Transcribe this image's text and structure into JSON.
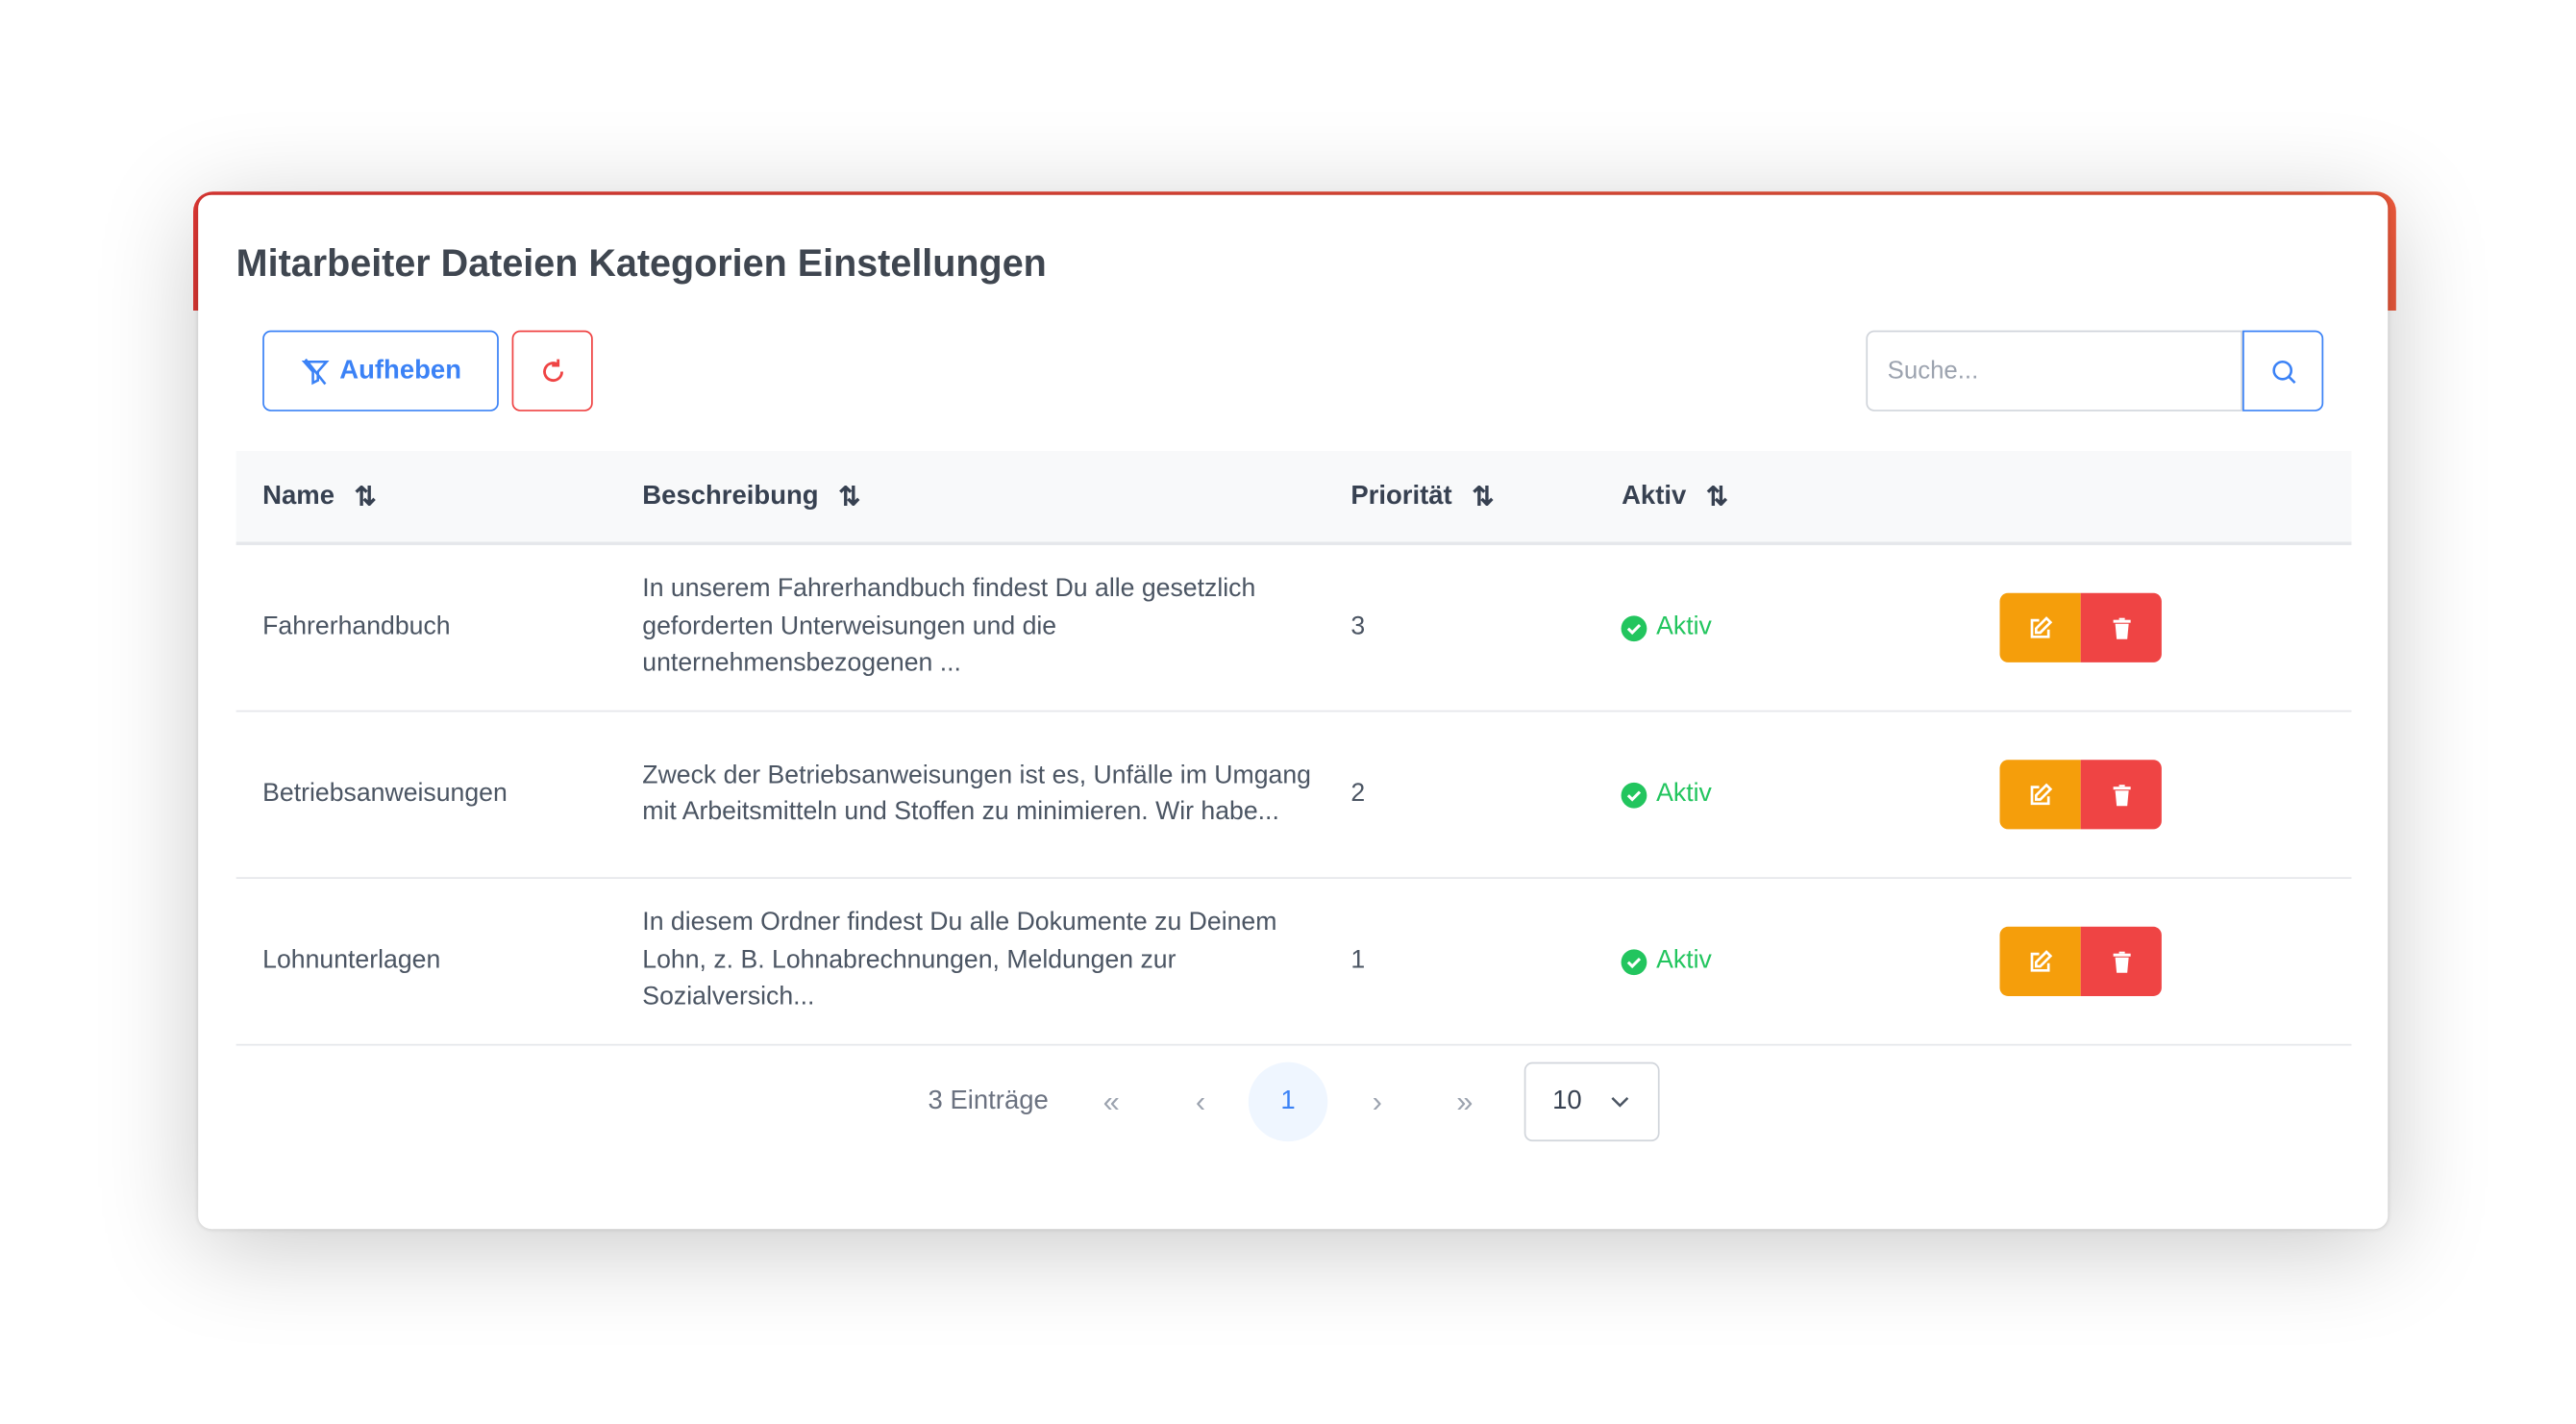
{
  "title": "Mitarbeiter Dateien Kategorien Einstellungen",
  "toolbar": {
    "clear_filter_label": "Aufheben",
    "search_placeholder": "Suche...",
    "search_value": ""
  },
  "colors": {
    "accent": "#e53935",
    "primary": "#3b82f6",
    "edit": "#f59e0b",
    "delete": "#ef4444",
    "active": "#22c55e"
  },
  "table": {
    "headers": {
      "name": "Name",
      "description": "Beschreibung",
      "priority": "Priorität",
      "active": "Aktiv"
    },
    "rows": [
      {
        "name": "Fahrerhandbuch",
        "description": "In unserem Fahrerhandbuch findest Du alle gesetzlich geforderten Unterweisungen und die unternehmensbezogenen ...",
        "priority": "3",
        "status": "Aktiv"
      },
      {
        "name": "Betriebsanweisungen",
        "description": "Zweck der Betriebsanweisungen ist es, Unfälle im Umgang mit Arbeitsmitteln und Stoffen zu minimieren. Wir habe...",
        "priority": "2",
        "status": "Aktiv"
      },
      {
        "name": "Lohnunterlagen",
        "description": "In diesem Ordner findest Du alle Dokumente zu Deinem Lohn, z. B. Lohnabrechnungen, Meldungen zur Sozialversich...",
        "priority": "1",
        "status": "Aktiv"
      }
    ]
  },
  "pagination": {
    "info": "3 Einträge",
    "first": "«",
    "prev": "‹",
    "current_page": "1",
    "next": "›",
    "last": "»",
    "page_size": "10"
  }
}
